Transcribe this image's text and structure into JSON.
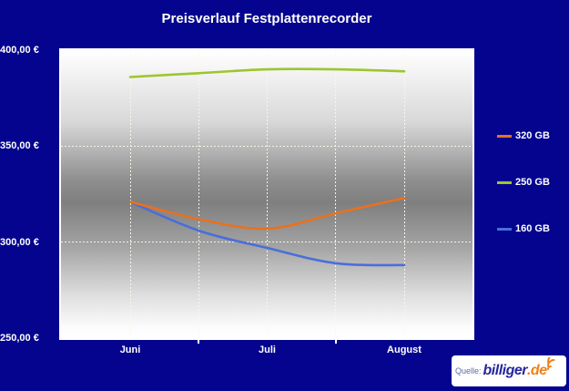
{
  "title": "Preisverlauf Festplattenrecorder",
  "colors": {
    "background": "#04048E",
    "text": "#FFFFFF",
    "plot_border": "#FFFFFF",
    "series_320gb": "#E8711F",
    "series_250gb": "#9DC62D",
    "series_160gb": "#4A6EDB",
    "badge_prefix": "#5A6CA8",
    "badge_brand": "#26269F",
    "badge_tld": "#F08019"
  },
  "chart_data": {
    "type": "line",
    "title": "Preisverlauf Festplattenrecorder",
    "x_tick_labels": [
      "Juni",
      "Juli",
      "August"
    ],
    "x_sample_positions_months": [
      0,
      0.5,
      1,
      1.5,
      2
    ],
    "y_tick_labels": [
      "400,00 €",
      "350,00 €",
      "300,00 €",
      "250,00 €"
    ],
    "y_tick_values": [
      400,
      350,
      300,
      250
    ],
    "h_gridline_values": [
      350,
      300
    ],
    "ylim": [
      250,
      400
    ],
    "grid": "dotted",
    "legend_position": "right",
    "currency_format": "0,00 €",
    "series": [
      {
        "name": "320 GB",
        "color": "#E8711F",
        "values": [
          321,
          312,
          307,
          315,
          323
        ]
      },
      {
        "name": "250 GB",
        "color": "#9DC62D",
        "values": [
          386,
          388,
          390,
          390,
          389
        ]
      },
      {
        "name": "160 GB",
        "color": "#4A6EDB",
        "values": [
          321,
          306,
          297,
          289,
          288
        ]
      }
    ]
  },
  "legend": {
    "items": [
      {
        "label": "320 GB",
        "color": "#E8711F"
      },
      {
        "label": "250 GB",
        "color": "#9DC62D"
      },
      {
        "label": "160 GB",
        "color": "#4A6EDB"
      }
    ]
  },
  "source_badge": {
    "prefix": "Quelle:",
    "brand": "billiger",
    "tld": ".de"
  }
}
